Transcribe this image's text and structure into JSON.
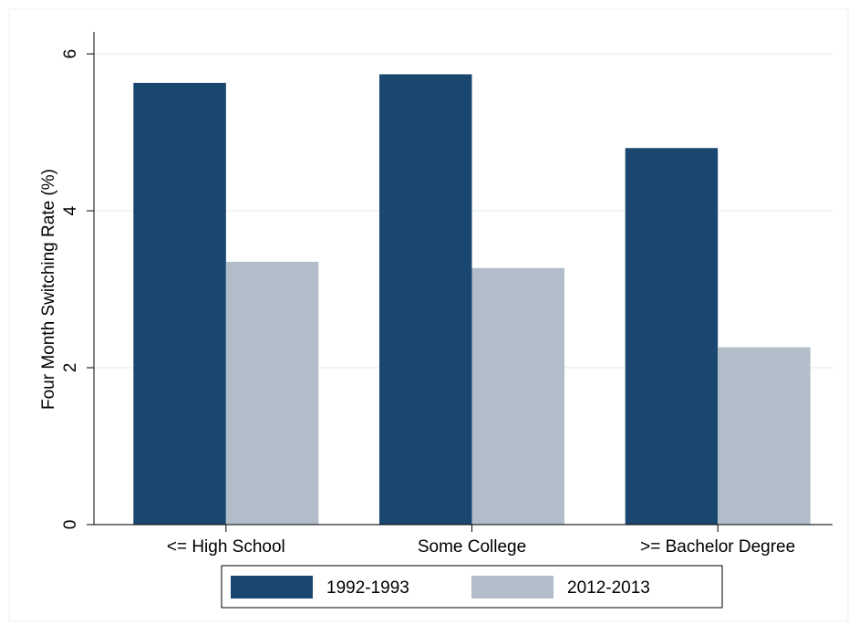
{
  "chart_data": {
    "type": "bar",
    "ylabel": "Four Month Switching Rate (%)",
    "categories": [
      "<= High School",
      "Some College",
      ">= Bachelor Degree"
    ],
    "series": [
      {
        "name": "1992-1993",
        "color": "#1a476f",
        "values": [
          5.63,
          5.74,
          4.8
        ]
      },
      {
        "name": "2012-2013",
        "color": "#b2bdc9",
        "values": [
          3.35,
          3.27,
          2.26
        ]
      }
    ],
    "ylim": [
      0,
      6.28
    ],
    "yticks": [
      0,
      2,
      4,
      6
    ],
    "grid": true,
    "legend": "bottom"
  }
}
